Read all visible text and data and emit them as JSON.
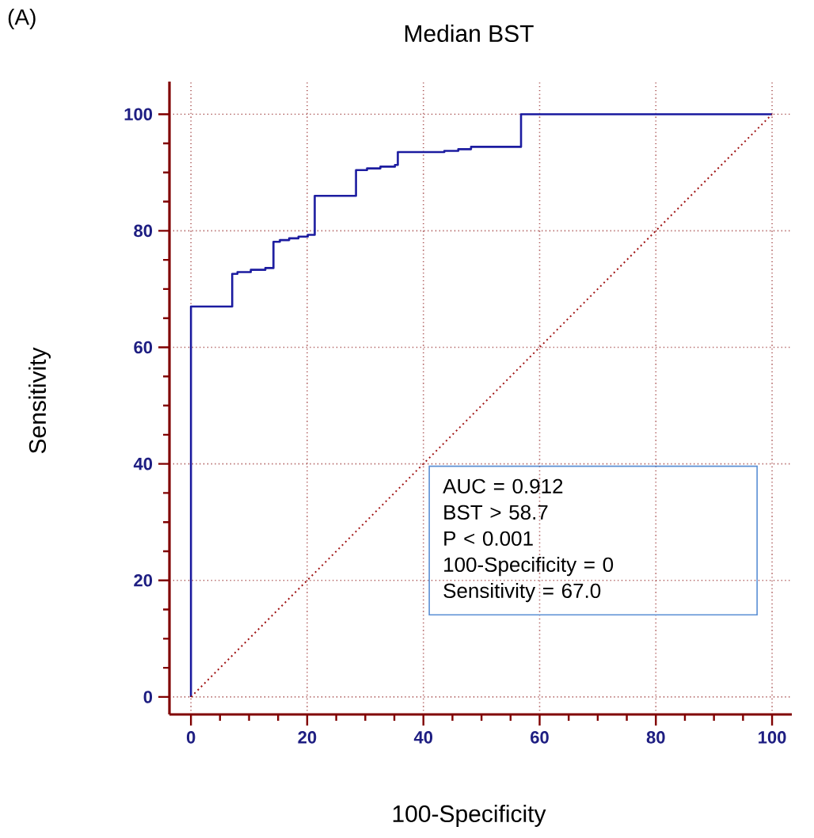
{
  "chart_data": {
    "type": "line",
    "title": "Median BST",
    "xlabel": "100-Specificity",
    "ylabel": "Sensitivity",
    "xlim": [
      -3.7,
      103.4
    ],
    "ylim": [
      -3,
      105.6
    ],
    "xticks": [
      0,
      20,
      40,
      60,
      80,
      100
    ],
    "yticks": [
      0,
      20,
      40,
      60,
      80,
      100
    ],
    "grid": true,
    "annotations": [
      "(A)",
      "AUC = 0.912",
      "BST > 58.7",
      "P < 0.001",
      "100-Specificity = 0",
      "Sensitivity = 67.0"
    ],
    "series": [
      {
        "color": "#1c1ca0",
        "line_style": "solid",
        "x": [
          0,
          0,
          7.1,
          7.1,
          8,
          8,
          10.3,
          10.3,
          12.8,
          12.8,
          14.2,
          14.2,
          15.3,
          15.3,
          16.9,
          16.9,
          18.5,
          18.5,
          20.1,
          20.1,
          21.3,
          21.3,
          28.4,
          28.4,
          30.3,
          30.3,
          32.6,
          32.6,
          35.1,
          35.1,
          35.6,
          35.6,
          43.6,
          43.6,
          46,
          46,
          48.2,
          48.2,
          56.8,
          56.8,
          100
        ],
        "values": [
          0,
          67,
          67,
          72.6,
          72.6,
          72.9,
          72.9,
          73.3,
          73.3,
          73.6,
          73.6,
          78.1,
          78.1,
          78.4,
          78.4,
          78.7,
          78.7,
          79,
          79,
          79.3,
          79.3,
          86,
          86,
          90.4,
          90.4,
          90.7,
          90.7,
          91,
          91,
          91.3,
          91.3,
          93.5,
          93.5,
          93.7,
          93.7,
          94,
          94,
          94.4,
          94.4,
          100,
          100
        ]
      },
      {
        "color": "#a01414",
        "line_style": "dotted",
        "x": [
          0,
          100
        ],
        "values": [
          0,
          100
        ]
      }
    ]
  }
}
